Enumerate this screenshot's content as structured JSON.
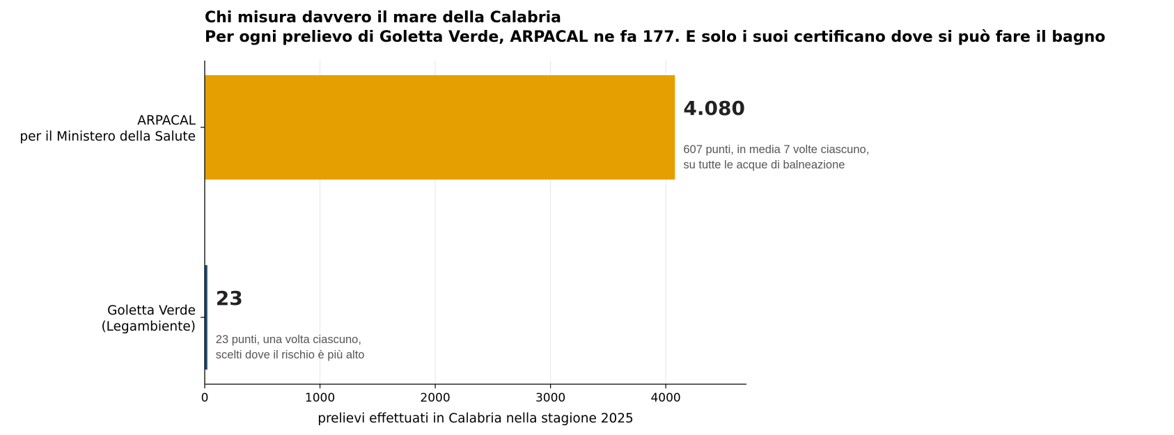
{
  "chart_data": {
    "type": "bar",
    "orientation": "horizontal",
    "title": "Chi misura davvero il mare della Calabria",
    "subtitle": "Per ogni prelievo di Goletta Verde, ARPACAL ne fa 177. E solo i suoi certificano dove si può fare il bagno",
    "xlabel": "prelievi effettuati in Calabria nella stagione 2025",
    "ylabel": "",
    "xlim": [
      0,
      4700
    ],
    "xticks": [
      0,
      1000,
      2000,
      3000,
      4000
    ],
    "grid": "vertical",
    "bars": [
      {
        "label_line1": "ARPACAL",
        "label_line2": "per il Ministero della Salute",
        "value": 4080,
        "value_label": "4.080",
        "note_line1": "607 punti, in media 7 volte ciascuno,",
        "note_line2": "su tutte le acque di balneazione",
        "color": "#E5A000"
      },
      {
        "label_line1": "Goletta Verde",
        "label_line2": "(Legambiente)",
        "value": 23,
        "value_label": "23",
        "note_line1": "23 punti, una volta ciascuno,",
        "note_line2": "scelti dove il rischio è più alto",
        "color": "#1F4E79"
      }
    ]
  }
}
